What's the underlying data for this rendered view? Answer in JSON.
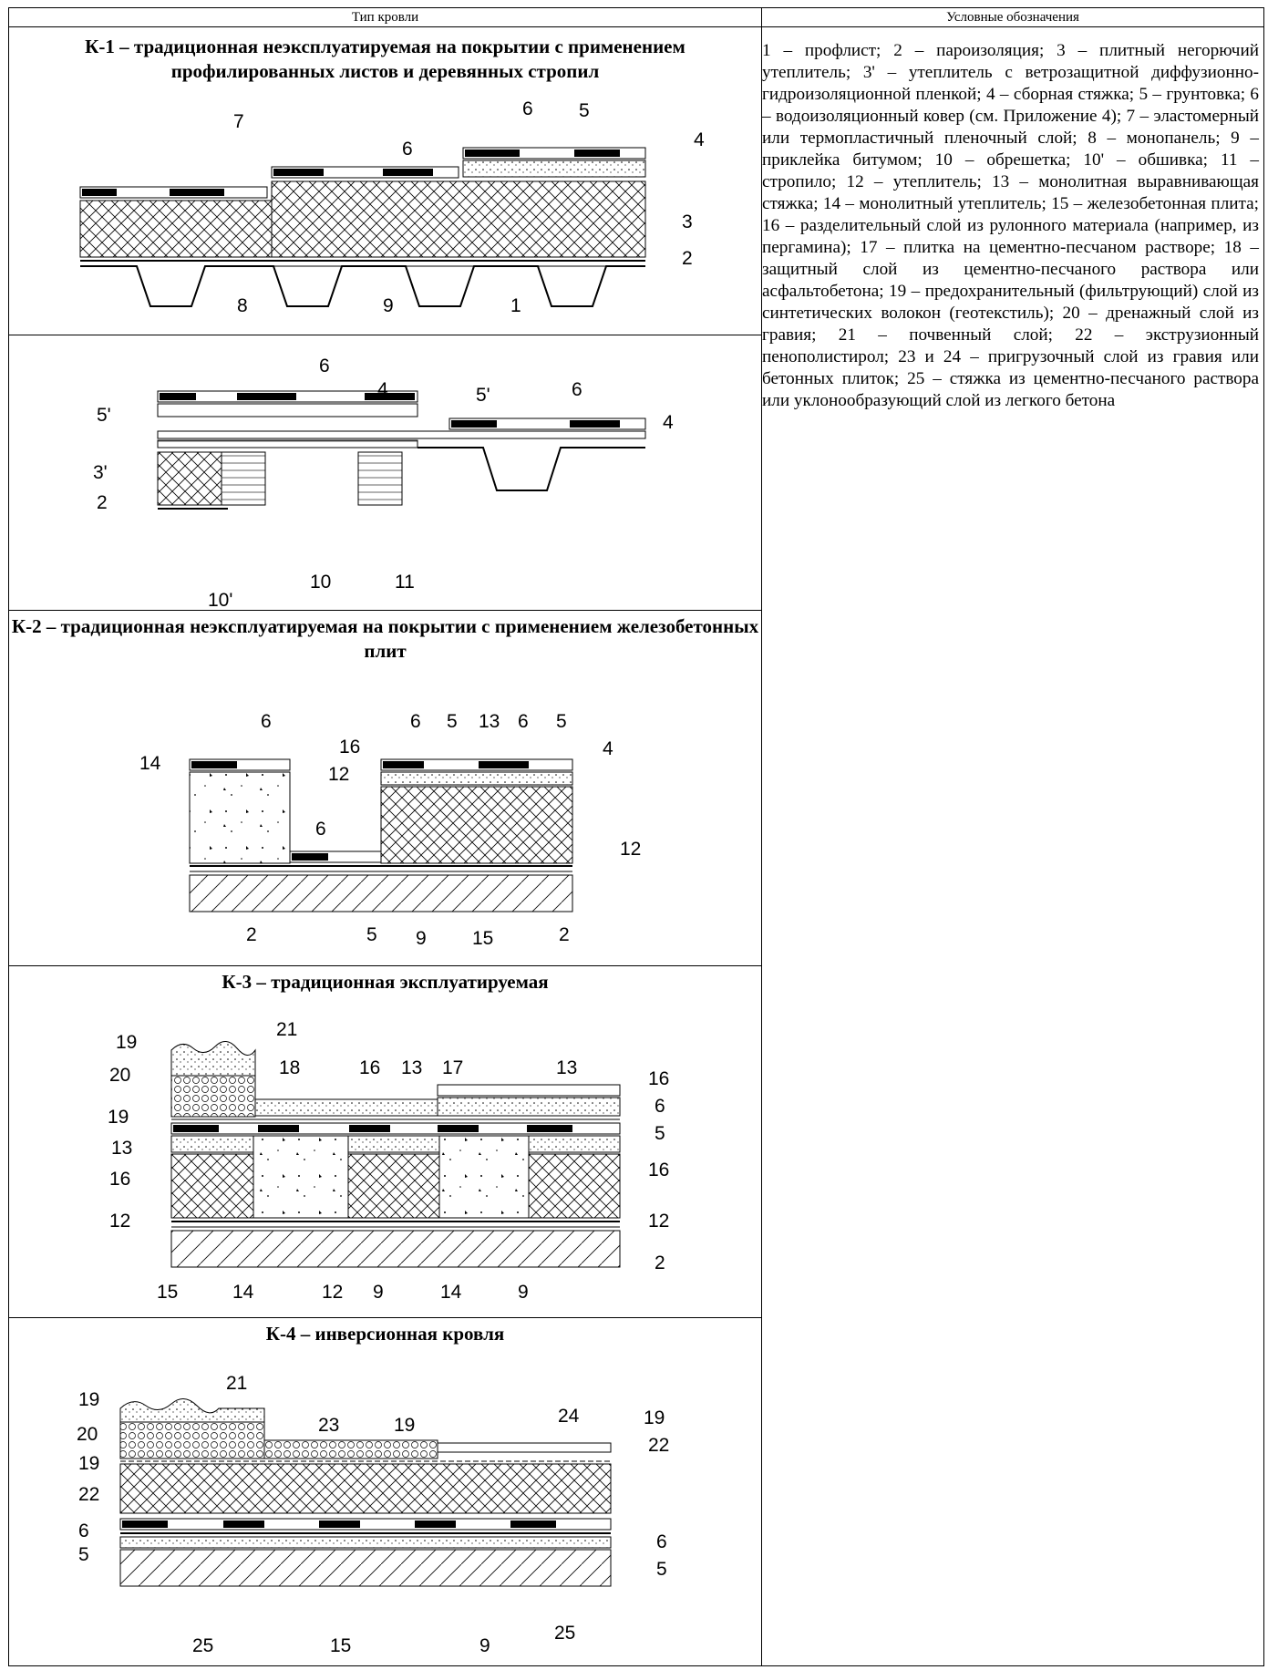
{
  "header": {
    "roof_type": "Тип кровли",
    "legend": "Условные обозначения"
  },
  "sections": [
    {
      "title": "К-1 – традиционная неэксплуатируемая на покрытии с применением профилированных листов и деревянных стропил"
    },
    {
      "title": "К-2 – традиционная неэксплуатируемая на покрытии с применением железобетонных плит"
    },
    {
      "title": "К-3 – традиционная эксплуатируемая"
    },
    {
      "title": "К-4 – инверсионная кровля"
    }
  ],
  "legend": "1 – профлист; 2 – пароизоляция; 3 – плитный негорючий утеплитель; 3' – утеплитель с ветрозащитной диффузионно-гидроизоляционной пленкой; 4 – сборная стяжка; 5 – грунтовка; 6 – водоизоляционный ковер (см. Приложение 4); 7 – эластомерный или термопластичный пленочный слой; 8 – монопанель; 9 – приклейка битумом; 10 – обрешетка; 10' – обшивка; 11 – стропило; 12 – утеплитель; 13 – монолитная выравнивающая стяжка; 14 – монолитный утеплитель; 15 – железобетонная плита; 16 – разделительный слой из рулонного материала (например, из пергамина); 17 – плитка на цементно-песчаном растворе; 18 – защитный слой из цементно-песчаного раствора или асфальтобетона; 19 – предохранительный (фильтрующий) слой из синтетических волокон (геотекстиль); 20 – дренажный слой из гравия; 21 – почвенный слой; 22 – экструзионный пенополистирол; 23 и 24 – пригрузочный слой из гравия или бетонных плиток; 25 – стяжка из цементно-песчаного раствора или уклонообразующий слой из легкого бетона"
}
